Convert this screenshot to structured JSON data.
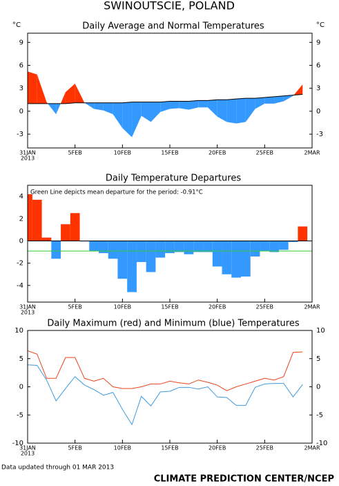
{
  "title": "SWINOUTSCIE, POLAND",
  "chart_data": [
    {
      "type": "area",
      "title": "Daily Average and Normal Temperatures",
      "y_unit": "°C",
      "year_label": "2013",
      "right_axis": true,
      "x": [
        0,
        1,
        2,
        3,
        4,
        5,
        6,
        7,
        8,
        9,
        10,
        11,
        12,
        13,
        14,
        15,
        16,
        17,
        18,
        19,
        20,
        21,
        22,
        23,
        24,
        25,
        26,
        27,
        28,
        29
      ],
      "values": [
        5.2,
        4.8,
        1.2,
        -0.4,
        2.5,
        3.6,
        1.1,
        0.3,
        0.1,
        -0.4,
        -2.2,
        -3.4,
        -0.6,
        -1.4,
        -0.1,
        0.3,
        0.4,
        0.2,
        0.5,
        0.5,
        -0.7,
        -1.4,
        -1.6,
        -1.4,
        0.3,
        1.0,
        1.0,
        1.3,
        2.0,
        3.5
      ],
      "normal": [
        1.0,
        1.0,
        1.0,
        1.0,
        1.0,
        1.1,
        1.1,
        1.1,
        1.1,
        1.1,
        1.1,
        1.2,
        1.2,
        1.2,
        1.2,
        1.3,
        1.3,
        1.3,
        1.4,
        1.4,
        1.5,
        1.5,
        1.6,
        1.7,
        1.7,
        1.8,
        1.9,
        2.0,
        2.1,
        2.2
      ],
      "colors": {
        "above": "#ff3300",
        "below": "#3399ff",
        "normal": "#000000"
      },
      "xlim": [
        0,
        30
      ],
      "xticks": [
        {
          "value": 0,
          "label": "31JAN"
        },
        {
          "value": 5,
          "label": "5FEB"
        },
        {
          "value": 10,
          "label": "10FEB"
        },
        {
          "value": 15,
          "label": "15FEB"
        },
        {
          "value": 20,
          "label": "20FEB"
        },
        {
          "value": 25,
          "label": "25FEB"
        },
        {
          "value": 30,
          "label": "2MAR"
        }
      ],
      "ylim": [
        -4.8,
        10.2
      ],
      "yticks": [
        -3,
        0,
        3,
        6,
        9
      ]
    },
    {
      "type": "bar",
      "title": "Daily Temperature Departures",
      "year_label": "2013",
      "right_axis": false,
      "annotation": "Green Line depicts mean departure for the period: -0.91°C",
      "mean_departure": -0.91,
      "mean_color": "#33cc33",
      "x": [
        0,
        1,
        2,
        3,
        4,
        5,
        6,
        7,
        8,
        9,
        10,
        11,
        12,
        13,
        14,
        15,
        16,
        17,
        18,
        19,
        20,
        21,
        22,
        23,
        24,
        25,
        26,
        27,
        28,
        29
      ],
      "values": [
        4.2,
        3.7,
        0.3,
        -1.6,
        1.5,
        2.5,
        -0.05,
        -0.9,
        -1.1,
        -1.6,
        -3.4,
        -4.6,
        -1.9,
        -2.8,
        -1.5,
        -1.1,
        -1.0,
        -1.2,
        -1.0,
        -1.0,
        -2.3,
        -3.0,
        -3.3,
        -3.2,
        -1.4,
        -0.9,
        -1.0,
        -0.8,
        -0.1,
        1.3
      ],
      "colors": {
        "above": "#ff3300",
        "below": "#3399ff"
      },
      "xlim": [
        0,
        30
      ],
      "xticks": [
        {
          "value": 0,
          "label": "31JAN"
        },
        {
          "value": 5,
          "label": "5FEB"
        },
        {
          "value": 10,
          "label": "10FEB"
        },
        {
          "value": 15,
          "label": "15FEB"
        },
        {
          "value": 20,
          "label": "20FEB"
        },
        {
          "value": 25,
          "label": "25FEB"
        },
        {
          "value": 30,
          "label": "2MAR"
        }
      ],
      "ylim": [
        -5.5,
        5.0
      ],
      "yticks": [
        -4,
        -2,
        0,
        2,
        4
      ]
    },
    {
      "type": "line",
      "title": "Daily Maximum (red) and Minimum (blue) Temperatures",
      "year_label": "2013",
      "right_axis": true,
      "x": [
        0,
        1,
        2,
        3,
        4,
        5,
        6,
        7,
        8,
        9,
        10,
        11,
        12,
        13,
        14,
        15,
        16,
        17,
        18,
        19,
        20,
        21,
        22,
        23,
        24,
        25,
        26,
        27,
        28,
        29
      ],
      "series": [
        {
          "color": "#e8441a",
          "values": [
            6.4,
            5.8,
            1.5,
            1.5,
            5.2,
            5.2,
            1.5,
            1.0,
            1.5,
            0.0,
            -0.3,
            -0.3,
            0.0,
            0.5,
            0.5,
            1.0,
            0.7,
            0.5,
            1.2,
            0.8,
            0.3,
            -0.7,
            0.0,
            0.5,
            1.0,
            1.5,
            1.2,
            1.8,
            6.1,
            6.2
          ]
        },
        {
          "color": "#3c9ae0",
          "values": [
            3.9,
            3.8,
            1.2,
            -2.5,
            -0.3,
            1.8,
            0.3,
            -0.5,
            -1.5,
            -1.0,
            -4.0,
            -6.7,
            -1.7,
            -3.4,
            -0.9,
            -0.8,
            -0.1,
            -0.1,
            -0.4,
            0.0,
            -1.8,
            -1.9,
            -3.3,
            -3.3,
            -0.1,
            0.5,
            0.6,
            0.6,
            -1.8,
            0.4
          ]
        }
      ],
      "xlim": [
        0,
        30
      ],
      "xticks": [
        {
          "value": 0,
          "label": "31JAN"
        },
        {
          "value": 5,
          "label": "5FEB"
        },
        {
          "value": 10,
          "label": "10FEB"
        },
        {
          "value": 15,
          "label": "15FEB"
        },
        {
          "value": 20,
          "label": "20FEB"
        },
        {
          "value": 25,
          "label": "25FEB"
        },
        {
          "value": 30,
          "label": "2MAR"
        }
      ],
      "ylim": [
        -10,
        10
      ],
      "yticks": [
        -10,
        -5,
        0,
        5,
        10
      ]
    }
  ],
  "footer": {
    "updated": "Data updated through 01 MAR 2013",
    "credit": "CLIMATE PREDICTION CENTER/NCEP"
  }
}
